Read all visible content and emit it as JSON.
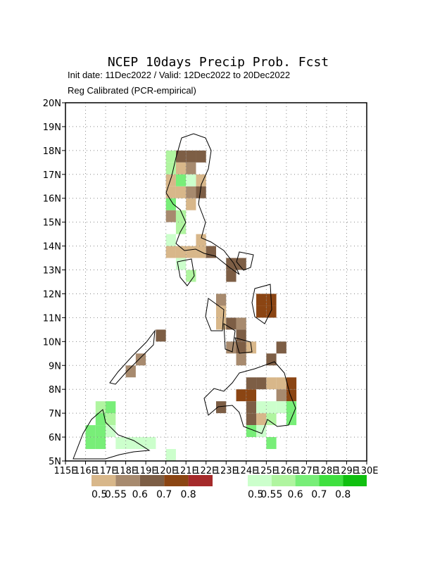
{
  "title": "NCEP 10days Precip Prob. Fcst",
  "subtitle": "Init date: 11Dec2022 / Valid: 12Dec2022 to 20Dec2022",
  "method": "Reg Calibrated (PCR-empirical)",
  "map": {
    "xlim": [
      115,
      130
    ],
    "ylim": [
      5,
      20
    ],
    "cell_size": 0.5,
    "xticks": [
      {
        "value": 115,
        "label": "115E"
      },
      {
        "value": 116,
        "label": "116E"
      },
      {
        "value": 117,
        "label": "117E"
      },
      {
        "value": 118,
        "label": "118E"
      },
      {
        "value": 119,
        "label": "119E"
      },
      {
        "value": 120,
        "label": "120E"
      },
      {
        "value": 121,
        "label": "121E"
      },
      {
        "value": 122,
        "label": "122E"
      },
      {
        "value": 123,
        "label": "123E"
      },
      {
        "value": 124,
        "label": "124E"
      },
      {
        "value": 125,
        "label": "125E"
      },
      {
        "value": 126,
        "label": "126E"
      },
      {
        "value": 127,
        "label": "127E"
      },
      {
        "value": 128,
        "label": "128E"
      },
      {
        "value": 129,
        "label": "129E"
      },
      {
        "value": 130,
        "label": "130E"
      }
    ],
    "yticks": [
      {
        "value": 5,
        "label": "5N"
      },
      {
        "value": 6,
        "label": "6N"
      },
      {
        "value": 7,
        "label": "7N"
      },
      {
        "value": 8,
        "label": "8N"
      },
      {
        "value": 9,
        "label": "9N"
      },
      {
        "value": 10,
        "label": "10N"
      },
      {
        "value": 11,
        "label": "11N"
      },
      {
        "value": 12,
        "label": "12N"
      },
      {
        "value": 13,
        "label": "13N"
      },
      {
        "value": 14,
        "label": "14N"
      },
      {
        "value": 15,
        "label": "15N"
      },
      {
        "value": 16,
        "label": "16N"
      },
      {
        "value": 17,
        "label": "17N"
      },
      {
        "value": 18,
        "label": "18N"
      },
      {
        "value": 19,
        "label": "19N"
      },
      {
        "value": 20,
        "label": "20N"
      }
    ],
    "grid": true,
    "dry_legend": {
      "values": [
        0.5,
        0.55,
        0.6,
        0.7,
        0.8
      ],
      "colors": [
        "#d8b78a",
        "#a78a6e",
        "#7d5e45",
        "#8b4513",
        "#a52a2a"
      ]
    },
    "wet_legend": {
      "values": [
        0.5,
        0.55,
        0.6,
        0.7,
        0.8
      ],
      "colors": [
        "#ccffcc",
        "#b0f5a0",
        "#78ee78",
        "#40e040",
        "#10c010"
      ]
    },
    "dry_cells": [
      [
        120.5,
        17.5,
        0.6
      ],
      [
        121,
        17.5,
        0.6
      ],
      [
        121.5,
        17.5,
        0.6
      ],
      [
        120.5,
        17,
        0.5
      ],
      [
        121,
        17,
        0.55
      ],
      [
        120,
        16.5,
        0.5
      ],
      [
        121.5,
        16.5,
        0.5
      ],
      [
        120,
        16,
        0.5
      ],
      [
        120.5,
        16,
        0.5
      ],
      [
        121,
        16,
        0.55
      ],
      [
        121.5,
        16,
        0.6
      ],
      [
        121,
        15.5,
        0.5
      ],
      [
        120,
        15,
        0.55
      ],
      [
        121.5,
        14,
        0.5
      ],
      [
        121.5,
        13.5,
        0.5
      ],
      [
        120,
        13.5,
        0.5
      ],
      [
        120.5,
        13.5,
        0.5
      ],
      [
        121,
        13.5,
        0.5
      ],
      [
        122,
        13.5,
        0.6
      ],
      [
        123,
        13,
        0.6
      ],
      [
        123.5,
        13,
        0.6
      ],
      [
        123,
        12.5,
        0.6
      ],
      [
        122.5,
        11.5,
        0.55
      ],
      [
        122.5,
        11,
        0.5
      ],
      [
        122.5,
        10.5,
        0.5
      ],
      [
        123,
        10.5,
        0.6
      ],
      [
        123.5,
        10.5,
        0.55
      ],
      [
        124.5,
        11.5,
        0.7
      ],
      [
        125,
        11.5,
        0.7
      ],
      [
        124.5,
        11,
        0.7
      ],
      [
        125,
        11,
        0.7
      ],
      [
        123.5,
        10,
        0.6
      ],
      [
        123,
        9.5,
        0.55
      ],
      [
        123.5,
        9.5,
        0.6
      ],
      [
        124,
        9.5,
        0.5
      ],
      [
        123.5,
        9,
        0.55
      ],
      [
        119.5,
        10,
        0.6
      ],
      [
        118.5,
        9,
        0.55
      ],
      [
        118,
        8.5,
        0.55
      ],
      [
        124,
        8,
        0.6
      ],
      [
        124.5,
        8,
        0.6
      ],
      [
        125,
        8,
        0.5
      ],
      [
        125.5,
        8,
        0.5
      ],
      [
        126,
        8,
        0.7
      ],
      [
        123.5,
        7.5,
        0.7
      ],
      [
        124,
        7.5,
        0.7
      ],
      [
        125.5,
        7.5,
        0.55
      ],
      [
        126,
        7.5,
        0.7
      ],
      [
        122.5,
        7,
        0.6
      ],
      [
        124,
        7,
        0.6
      ],
      [
        124.5,
        6.5,
        0.5
      ],
      [
        124,
        6.5,
        0.6
      ],
      [
        125,
        9,
        0.6
      ],
      [
        125.5,
        9.5,
        0.6
      ]
    ],
    "wet_cells": [
      [
        120,
        17.5,
        0.55
      ],
      [
        120,
        17,
        0.55
      ],
      [
        120.5,
        16.5,
        0.6
      ],
      [
        121,
        16.5,
        0.5
      ],
      [
        120,
        15.5,
        0.6
      ],
      [
        120.5,
        15,
        0.55
      ],
      [
        120.5,
        14.5,
        0.55
      ],
      [
        120.5,
        13,
        0.5
      ],
      [
        121,
        12.5,
        0.55
      ],
      [
        120,
        14,
        0.5
      ],
      [
        124.5,
        7,
        0.5
      ],
      [
        125,
        7,
        0.5
      ],
      [
        125.5,
        7,
        0.5
      ],
      [
        124.5,
        6,
        0.5
      ],
      [
        125,
        6.5,
        0.55
      ],
      [
        126,
        6.5,
        0.6
      ],
      [
        126,
        7,
        0.6
      ],
      [
        125,
        5.5,
        0.6
      ],
      [
        124,
        6,
        0.6
      ],
      [
        116,
        6,
        0.6
      ],
      [
        116,
        5.5,
        0.6
      ],
      [
        116.5,
        6.5,
        0.6
      ],
      [
        117,
        6.5,
        0.55
      ],
      [
        116.5,
        6,
        0.6
      ],
      [
        117,
        6,
        0.5
      ],
      [
        117.5,
        5.5,
        0.5
      ],
      [
        116.5,
        5.5,
        0.6
      ],
      [
        118,
        5.5,
        0.5
      ],
      [
        118.5,
        5.5,
        0.5
      ],
      [
        119,
        5.5,
        0.5
      ],
      [
        116.5,
        7,
        0.55
      ],
      [
        117,
        7,
        0.6
      ],
      [
        120,
        5,
        0.5
      ]
    ]
  }
}
